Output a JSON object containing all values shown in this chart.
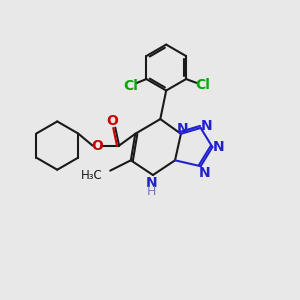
{
  "bg_color": "#e8e8e8",
  "bond_color": "#1a1a1a",
  "n_color": "#2222cc",
  "o_color": "#cc0000",
  "cl_color": "#00aa00",
  "nh_color": "#7777bb",
  "lw": 1.5,
  "fig_w": 3.0,
  "fig_h": 3.0,
  "dpi": 100,
  "xlim": [
    0,
    10
  ],
  "ylim": [
    0,
    10
  ]
}
